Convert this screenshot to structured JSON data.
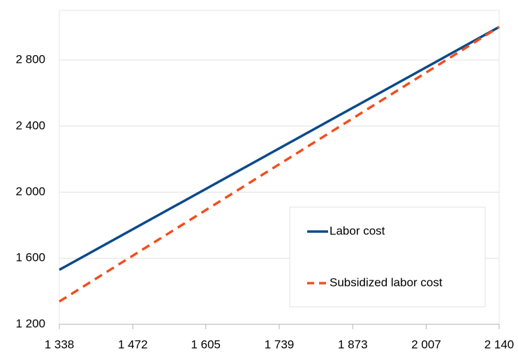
{
  "chart_data": {
    "type": "line",
    "x": [
      1338,
      2140
    ],
    "series": [
      {
        "name": "Labor cost",
        "color": "#0b4a8b",
        "style": "solid",
        "values": [
          1530,
          3000
        ]
      },
      {
        "name": "Subsidized labor cost",
        "color": "#f24e1e",
        "style": "dashed",
        "values": [
          1338,
          3000
        ]
      }
    ],
    "xlim": [
      1338,
      2140
    ],
    "xticks": [
      {
        "value": 1338,
        "label": "1 338"
      },
      {
        "value": 1472,
        "label": "1 472"
      },
      {
        "value": 1605,
        "label": "1 605"
      },
      {
        "value": 1739,
        "label": "1 739"
      },
      {
        "value": 1873,
        "label": "1 873"
      },
      {
        "value": 2007,
        "label": "2 007"
      },
      {
        "value": 2140,
        "label": "2 140"
      }
    ],
    "ylim": [
      1200,
      3100
    ],
    "yticks": [
      {
        "value": 1200,
        "label": "1 200"
      },
      {
        "value": 1600,
        "label": "1 600"
      },
      {
        "value": 2000,
        "label": "2 000"
      },
      {
        "value": 2400,
        "label": "2 400"
      },
      {
        "value": 2800,
        "label": "2 800"
      }
    ],
    "grid": true
  }
}
